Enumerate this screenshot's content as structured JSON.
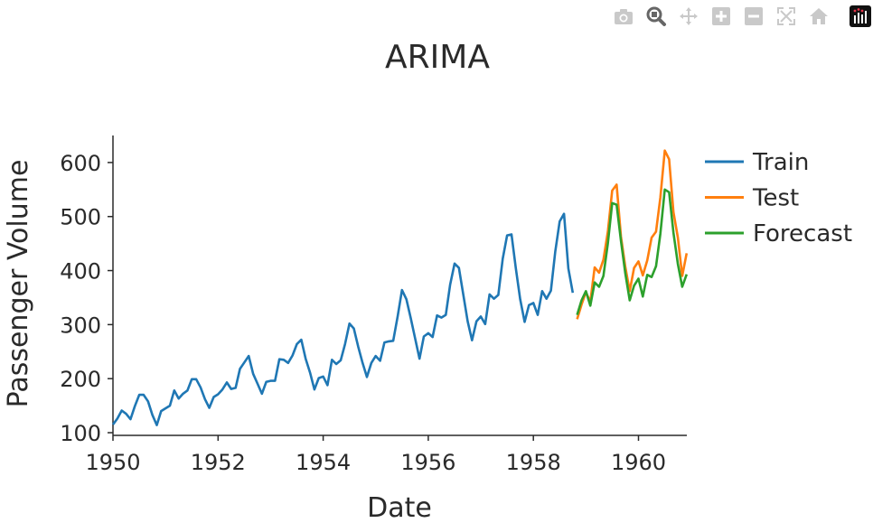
{
  "modebar": {
    "buttons": [
      {
        "name": "camera-icon",
        "active": false
      },
      {
        "name": "zoom-icon",
        "active": true
      },
      {
        "name": "pan-icon",
        "active": false
      },
      {
        "name": "zoom-in-icon",
        "active": false
      },
      {
        "name": "zoom-out-icon",
        "active": false
      },
      {
        "name": "autoscale-icon",
        "active": false
      },
      {
        "name": "home-icon",
        "active": false
      },
      {
        "name": "plotly-logo-icon",
        "active": false
      }
    ],
    "color_inactive": "#c9c9c9",
    "color_active": "#666666"
  },
  "chart_data": {
    "type": "line",
    "title": "ARIMA",
    "xlabel": "Date",
    "ylabel": "Passenger Volume",
    "xlim": [
      1950.0,
      1960.92
    ],
    "ylim": [
      95,
      650
    ],
    "xticks": [
      1950,
      1952,
      1954,
      1956,
      1958,
      1960
    ],
    "yticks": [
      100,
      200,
      300,
      400,
      500,
      600
    ],
    "grid": false,
    "legend_position": "top-right",
    "series": [
      {
        "name": "Train",
        "color": "#1f77b4",
        "x_start": 1950.0,
        "x_step": 0.08333,
        "values": [
          115,
          126,
          141,
          135,
          125,
          149,
          170,
          170,
          158,
          133,
          114,
          140,
          145,
          150,
          178,
          163,
          172,
          178,
          199,
          199,
          184,
          162,
          146,
          166,
          171,
          180,
          193,
          181,
          183,
          218,
          230,
          242,
          209,
          191,
          172,
          194,
          196,
          196,
          236,
          235,
          229,
          243,
          264,
          272,
          237,
          211,
          180,
          201,
          204,
          188,
          235,
          227,
          234,
          264,
          302,
          293,
          259,
          229,
          203,
          229,
          242,
          233,
          267,
          269,
          270,
          315,
          364,
          347,
          312,
          274,
          237,
          278,
          284,
          277,
          317,
          313,
          318,
          374,
          413,
          405,
          355,
          306,
          271,
          306,
          315,
          301,
          356,
          348,
          355,
          422,
          465,
          467,
          404,
          347,
          305,
          336,
          340,
          318,
          362,
          348,
          363,
          435,
          491,
          505,
          404,
          359
        ]
      },
      {
        "name": "Test",
        "color": "#ff7f0e",
        "x_start": 1958.833,
        "x_step": 0.08333,
        "values": [
          310,
          337,
          360,
          342,
          406,
          396,
          420,
          472,
          548,
          559,
          463,
          407,
          362,
          405,
          417,
          391,
          419,
          461,
          472,
          535,
          622,
          606,
          508,
          461,
          390,
          432
        ]
      },
      {
        "name": "Forecast",
        "color": "#2ca02c",
        "x_start": 1958.833,
        "x_step": 0.08333,
        "values": [
          318,
          345,
          362,
          335,
          378,
          370,
          390,
          450,
          525,
          522,
          455,
          395,
          345,
          372,
          385,
          352,
          392,
          388,
          408,
          468,
          550,
          545,
          470,
          412,
          370,
          393
        ]
      }
    ]
  }
}
